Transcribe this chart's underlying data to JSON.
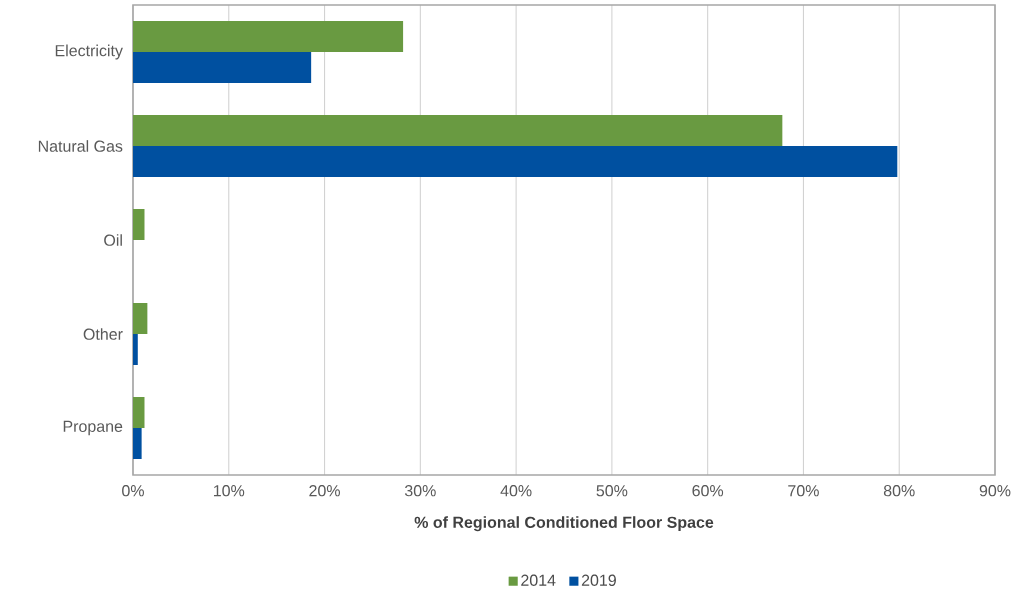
{
  "chart_data": {
    "type": "bar",
    "orientation": "horizontal",
    "categories": [
      "Electricity",
      "Natural Gas",
      "Oil",
      "Other",
      "Propane"
    ],
    "series": [
      {
        "name": "2014",
        "color": "#699a41",
        "values": [
          28.2,
          67.8,
          1.2,
          1.5,
          1.2
        ]
      },
      {
        "name": "2019",
        "color": "#0050a0",
        "values": [
          18.6,
          79.8,
          null,
          0.5,
          0.9
        ]
      }
    ],
    "xlim": [
      0,
      90
    ],
    "xticks": [
      {
        "value": 0,
        "label": "0%"
      },
      {
        "value": 10,
        "label": "10%"
      },
      {
        "value": 20,
        "label": "20%"
      },
      {
        "value": 30,
        "label": "30%"
      },
      {
        "value": 40,
        "label": "40%"
      },
      {
        "value": 50,
        "label": "50%"
      },
      {
        "value": 60,
        "label": "60%"
      },
      {
        "value": 70,
        "label": "70%"
      },
      {
        "value": 80,
        "label": "80%"
      },
      {
        "value": 90,
        "label": "90%"
      }
    ],
    "xlabel": "% of Regional Conditioned Floor Space",
    "grid": "x",
    "legend": "bottom"
  }
}
